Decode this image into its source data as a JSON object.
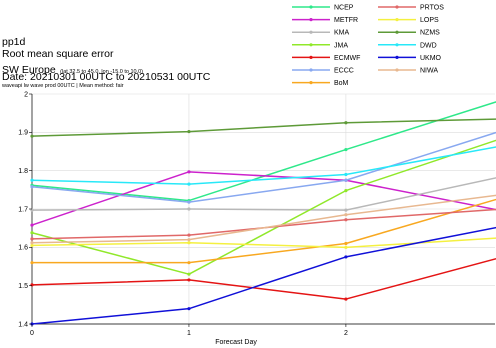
{
  "header": {
    "product": "pp1d",
    "metric": "Root mean square error",
    "region": "SW Europe",
    "region_extent": "(lat  32.5 to 45.0, lon  -15.0 to 10.0)",
    "date_range": "Date: 20210301 00UTC to 20210531 00UTC",
    "subtitle": "waveapi lw wave prod 00UTC | Mean method: fair"
  },
  "chart_data": {
    "type": "line",
    "xlabel": "Forecast Day",
    "ylabel": "",
    "x": [
      0,
      1,
      2,
      3
    ],
    "xlim": [
      0,
      2.95
    ],
    "ylim": [
      1.4,
      2.0
    ],
    "xticks": [
      "0",
      "1",
      "2"
    ],
    "yticks": [
      "1.4",
      "1.5",
      "1.6",
      "1.7",
      "1.8",
      "1.9",
      "2"
    ],
    "grid": true,
    "legend_position": "top-right, two columns",
    "series": [
      {
        "name": "NCEP",
        "color": "#2ee88a",
        "values": [
          1.762,
          1.722,
          1.855,
          1.985
        ]
      },
      {
        "name": "METFR",
        "color": "#cc22cc",
        "values": [
          1.658,
          1.797,
          1.775,
          1.695
        ]
      },
      {
        "name": "KMA",
        "color": "#b8b8b8",
        "values": [
          1.697,
          1.7,
          1.697,
          1.785
        ]
      },
      {
        "name": "JMA",
        "color": "#90e82a",
        "values": [
          1.638,
          1.53,
          1.748,
          1.885
        ]
      },
      {
        "name": "ECMWF",
        "color": "#e41414",
        "values": [
          1.502,
          1.515,
          1.465,
          1.575
        ]
      },
      {
        "name": "ECCC",
        "color": "#88a8f0",
        "values": [
          1.758,
          1.718,
          1.775,
          1.905
        ]
      },
      {
        "name": "BoM",
        "color": "#f8a820",
        "values": [
          1.56,
          1.56,
          1.61,
          1.73
        ]
      },
      {
        "name": "PRTOS",
        "color": "#e06868",
        "values": [
          1.622,
          1.632,
          1.672,
          1.7
        ]
      },
      {
        "name": "LOPS",
        "color": "#f4f040",
        "values": [
          1.605,
          1.612,
          1.6,
          1.625
        ]
      },
      {
        "name": "NZMS",
        "color": "#5e9a38",
        "values": [
          1.89,
          1.902,
          1.925,
          1.935
        ]
      },
      {
        "name": "DWD",
        "color": "#28e8f8",
        "values": [
          1.775,
          1.765,
          1.79,
          1.865
        ]
      },
      {
        "name": "UKMO",
        "color": "#1010d8",
        "values": [
          1.4,
          1.44,
          1.575,
          1.655
        ]
      },
      {
        "name": "NIWA",
        "color": "#e8b890",
        "values": [
          1.612,
          1.62,
          1.685,
          1.738
        ]
      }
    ]
  }
}
